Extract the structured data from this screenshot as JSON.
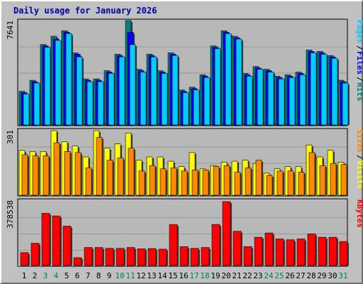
{
  "title": "Daily usage for January 2026",
  "colors": {
    "hits": "#008080",
    "files": "#0000ff",
    "pages": "#00ccff",
    "visits": "#ffff00",
    "sites": "#ff8800",
    "kbytes": "#ff0000",
    "weekend_tick": "#00805a",
    "tick": "#000000"
  },
  "chart_data": [
    {
      "type": "bar",
      "panel": "top",
      "ymax_label": "7641",
      "ylim": [
        0,
        7641
      ],
      "categories": [
        "1",
        "2",
        "3",
        "4",
        "5",
        "6",
        "7",
        "8",
        "9",
        "10",
        "11",
        "12",
        "13",
        "14",
        "15",
        "16",
        "17",
        "18",
        "19",
        "20",
        "21",
        "22",
        "23",
        "24",
        "25",
        "26",
        "27",
        "28",
        "29",
        "30",
        "31"
      ],
      "weekend_days": [
        "3",
        "4",
        "10",
        "11",
        "17",
        "18",
        "24",
        "25",
        "31"
      ],
      "legend": [
        "Pages",
        "/",
        "Files",
        "/",
        "Hits"
      ],
      "series": [
        {
          "name": "Hits",
          "values": [
            2500,
            3300,
            5900,
            6500,
            6900,
            5300,
            3400,
            3400,
            4000,
            5200,
            7641,
            4100,
            5200,
            4000,
            5300,
            2600,
            2800,
            3700,
            5800,
            6900,
            6500,
            3800,
            4300,
            4100,
            3600,
            3700,
            3900,
            5500,
            5400,
            5100,
            3300
          ]
        },
        {
          "name": "Files",
          "values": [
            2400,
            3200,
            5800,
            6300,
            6800,
            5200,
            3300,
            3300,
            3900,
            5100,
            6800,
            4000,
            5100,
            3900,
            5200,
            2500,
            2700,
            3600,
            5700,
            6800,
            6400,
            3700,
            4200,
            4000,
            3500,
            3600,
            3800,
            5400,
            5300,
            5000,
            3200
          ]
        },
        {
          "name": "Pages",
          "values": [
            2300,
            3100,
            5700,
            6200,
            6700,
            5000,
            3200,
            3200,
            3800,
            5000,
            5900,
            3900,
            5000,
            3800,
            5100,
            2400,
            2600,
            3500,
            5600,
            6700,
            6300,
            3600,
            4100,
            3900,
            3400,
            3500,
            3700,
            5300,
            5200,
            4900,
            3100
          ]
        }
      ]
    },
    {
      "type": "bar",
      "panel": "middle",
      "ymax_label": "301",
      "ylim": [
        0,
        301
      ],
      "categories": [
        "1",
        "2",
        "3",
        "4",
        "5",
        "6",
        "7",
        "8",
        "9",
        "10",
        "11",
        "12",
        "13",
        "14",
        "15",
        "16",
        "17",
        "18",
        "19",
        "20",
        "21",
        "22",
        "23",
        "24",
        "25",
        "26",
        "27",
        "28",
        "29",
        "30",
        "31"
      ],
      "legend": [
        "Sites",
        "/",
        "Visits"
      ],
      "series": [
        {
          "name": "Visits",
          "values": [
            210,
            205,
            205,
            301,
            250,
            230,
            180,
            301,
            220,
            240,
            290,
            165,
            180,
            180,
            160,
            135,
            200,
            125,
            140,
            155,
            160,
            165,
            150,
            105,
            125,
            135,
            135,
            235,
            180,
            210,
            155
          ]
        },
        {
          "name": "Sites",
          "values": [
            190,
            185,
            185,
            245,
            205,
            200,
            130,
            270,
            165,
            175,
            220,
            115,
            140,
            125,
            130,
            115,
            120,
            120,
            135,
            140,
            110,
            130,
            165,
            95,
            115,
            115,
            110,
            200,
            140,
            150,
            145
          ]
        }
      ]
    },
    {
      "type": "bar",
      "panel": "bottom",
      "ymax_label": "378538",
      "ylim": [
        0,
        378538
      ],
      "categories": [
        "1",
        "2",
        "3",
        "4",
        "5",
        "6",
        "7",
        "8",
        "9",
        "10",
        "11",
        "12",
        "13",
        "14",
        "15",
        "16",
        "17",
        "18",
        "19",
        "20",
        "21",
        "22",
        "23",
        "24",
        "25",
        "26",
        "27",
        "28",
        "29",
        "30",
        "31"
      ],
      "legend": [
        "KBytes"
      ],
      "series": [
        {
          "name": "KBytes",
          "values": [
            80000,
            135000,
            310000,
            295000,
            235000,
            50000,
            110000,
            110000,
            105000,
            105000,
            110000,
            102000,
            104000,
            100000,
            245000,
            115000,
            105000,
            110000,
            245000,
            378538,
            205000,
            115000,
            170000,
            195000,
            160000,
            155000,
            160000,
            190000,
            170000,
            170000,
            145000
          ]
        }
      ]
    }
  ]
}
